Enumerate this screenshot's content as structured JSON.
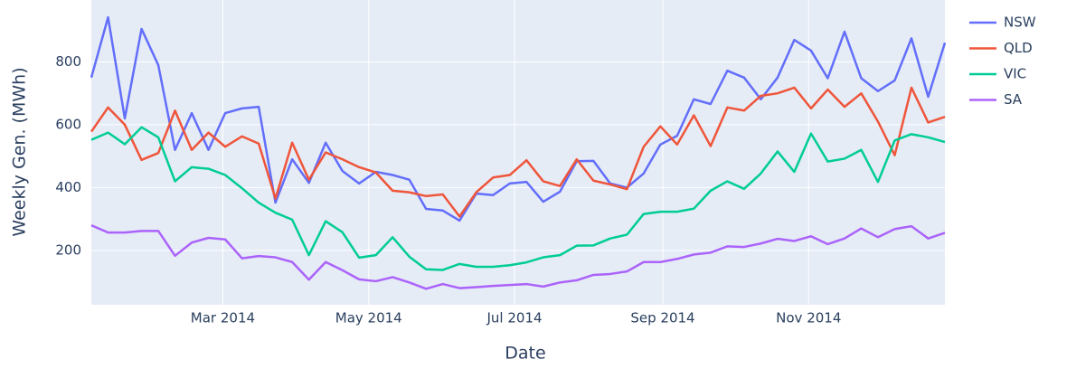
{
  "chart_data": {
    "type": "line",
    "x_label": "Date",
    "y_label": "Weekly Gen. (MWh)",
    "x": [
      "2014-01-05",
      "2014-01-12",
      "2014-01-19",
      "2014-01-26",
      "2014-02-02",
      "2014-02-09",
      "2014-02-16",
      "2014-02-23",
      "2014-03-02",
      "2014-03-09",
      "2014-03-16",
      "2014-03-23",
      "2014-03-30",
      "2014-04-06",
      "2014-04-13",
      "2014-04-20",
      "2014-04-27",
      "2014-05-04",
      "2014-05-11",
      "2014-05-18",
      "2014-05-25",
      "2014-06-01",
      "2014-06-08",
      "2014-06-15",
      "2014-06-22",
      "2014-06-29",
      "2014-07-06",
      "2014-07-13",
      "2014-07-20",
      "2014-07-27",
      "2014-08-03",
      "2014-08-10",
      "2014-08-17",
      "2014-08-24",
      "2014-08-31",
      "2014-09-07",
      "2014-09-14",
      "2014-09-21",
      "2014-09-28",
      "2014-10-05",
      "2014-10-12",
      "2014-10-19",
      "2014-10-26",
      "2014-11-02",
      "2014-11-09",
      "2014-11-16",
      "2014-11-23",
      "2014-11-30",
      "2014-12-07",
      "2014-12-14",
      "2014-12-21",
      "2014-12-28"
    ],
    "series": [
      {
        "name": "NSW",
        "color": "#636efa",
        "values": [
          750,
          942,
          620,
          905,
          790,
          520,
          637,
          520,
          637,
          652,
          657,
          352,
          490,
          415,
          543,
          453,
          413,
          450,
          440,
          425,
          332,
          327,
          295,
          381,
          376,
          413,
          418,
          355,
          387,
          484,
          485,
          413,
          400,
          445,
          537,
          565,
          681,
          666,
          772,
          750,
          681,
          750,
          870,
          836,
          748,
          896,
          748,
          707,
          741,
          875,
          689,
          861
        ]
      },
      {
        "name": "QLD",
        "color": "#EF553B",
        "values": [
          578,
          655,
          600,
          488,
          510,
          645,
          520,
          575,
          530,
          563,
          540,
          365,
          543,
          425,
          512,
          490,
          465,
          448,
          390,
          385,
          373,
          378,
          308,
          385,
          432,
          440,
          487,
          420,
          405,
          490,
          422,
          410,
          395,
          530,
          595,
          537,
          630,
          532,
          655,
          645,
          692,
          700,
          718,
          652,
          712,
          657,
          700,
          610,
          503,
          718,
          607,
          625
        ]
      },
      {
        "name": "VIC",
        "color": "#00cc96",
        "values": [
          552,
          575,
          538,
          592,
          560,
          420,
          465,
          460,
          440,
          398,
          352,
          320,
          298,
          185,
          293,
          258,
          177,
          185,
          242,
          180,
          140,
          138,
          157,
          148,
          148,
          153,
          162,
          178,
          185,
          215,
          216,
          238,
          250,
          316,
          323,
          323,
          333,
          390,
          420,
          396,
          445,
          515,
          450,
          572,
          483,
          492,
          520,
          418,
          550,
          570,
          560,
          545
        ]
      },
      {
        "name": "SA",
        "color": "#ab63fa",
        "values": [
          280,
          257,
          257,
          262,
          262,
          183,
          225,
          240,
          235,
          175,
          182,
          178,
          163,
          107,
          163,
          137,
          108,
          102,
          115,
          98,
          78,
          93,
          80,
          83,
          87,
          90,
          93,
          85,
          98,
          105,
          122,
          125,
          133,
          163,
          163,
          173,
          187,
          193,
          213,
          211,
          222,
          237,
          230,
          245,
          220,
          238,
          270,
          242,
          268,
          277,
          238,
          256
        ]
      }
    ],
    "xlim": [
      "2014-01-05",
      "2014-12-28"
    ],
    "xticks": [
      {
        "value": "2014-03-01",
        "label": "Mar 2014"
      },
      {
        "value": "2014-05-01",
        "label": "May 2014"
      },
      {
        "value": "2014-07-01",
        "label": "Jul 2014"
      },
      {
        "value": "2014-09-01",
        "label": "Sep 2014"
      },
      {
        "value": "2014-11-01",
        "label": "Nov 2014"
      }
    ],
    "ylim": [
      27,
      997
    ],
    "yticks": [
      200,
      400,
      600,
      800
    ],
    "grid": true,
    "legend": "right"
  }
}
